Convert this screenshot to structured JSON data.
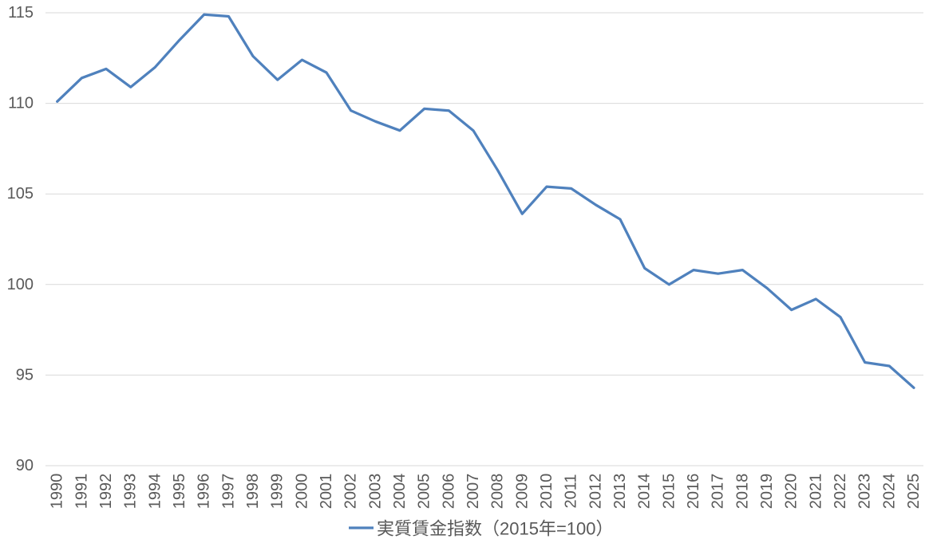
{
  "chart_data": {
    "type": "line",
    "title": "",
    "xlabel": "",
    "ylabel": "",
    "legend_label": "実質賃金指数（2015年=100）",
    "legend_position": "bottom",
    "grid": true,
    "ylim": [
      90,
      115
    ],
    "yticks": [
      90,
      95,
      100,
      105,
      110,
      115
    ],
    "categories": [
      "1990",
      "1991",
      "1992",
      "1993",
      "1994",
      "1995",
      "1996",
      "1997",
      "1998",
      "1999",
      "2000",
      "2001",
      "2002",
      "2003",
      "2004",
      "2005",
      "2006",
      "2007",
      "2008",
      "2009",
      "2010",
      "2011",
      "2012",
      "2013",
      "2014",
      "2015",
      "2016",
      "2017",
      "2018",
      "2019",
      "2020",
      "2021",
      "2022",
      "2023",
      "2024",
      "2025"
    ],
    "series": [
      {
        "name": "実質賃金指数（2015年=100）",
        "values": [
          110.1,
          111.4,
          111.9,
          110.9,
          112.0,
          113.5,
          114.9,
          114.8,
          112.6,
          111.3,
          112.4,
          111.7,
          109.6,
          109.0,
          108.5,
          109.7,
          109.6,
          108.5,
          106.3,
          103.9,
          105.4,
          105.3,
          104.4,
          103.6,
          100.9,
          100.0,
          100.8,
          100.6,
          100.8,
          99.8,
          98.6,
          99.2,
          98.2,
          95.7,
          95.5,
          94.3
        ]
      }
    ],
    "colors": {
      "line": "#4F81BD",
      "gridline": "#D9D9D9",
      "text": "#595959",
      "background": "#FFFFFF"
    }
  }
}
